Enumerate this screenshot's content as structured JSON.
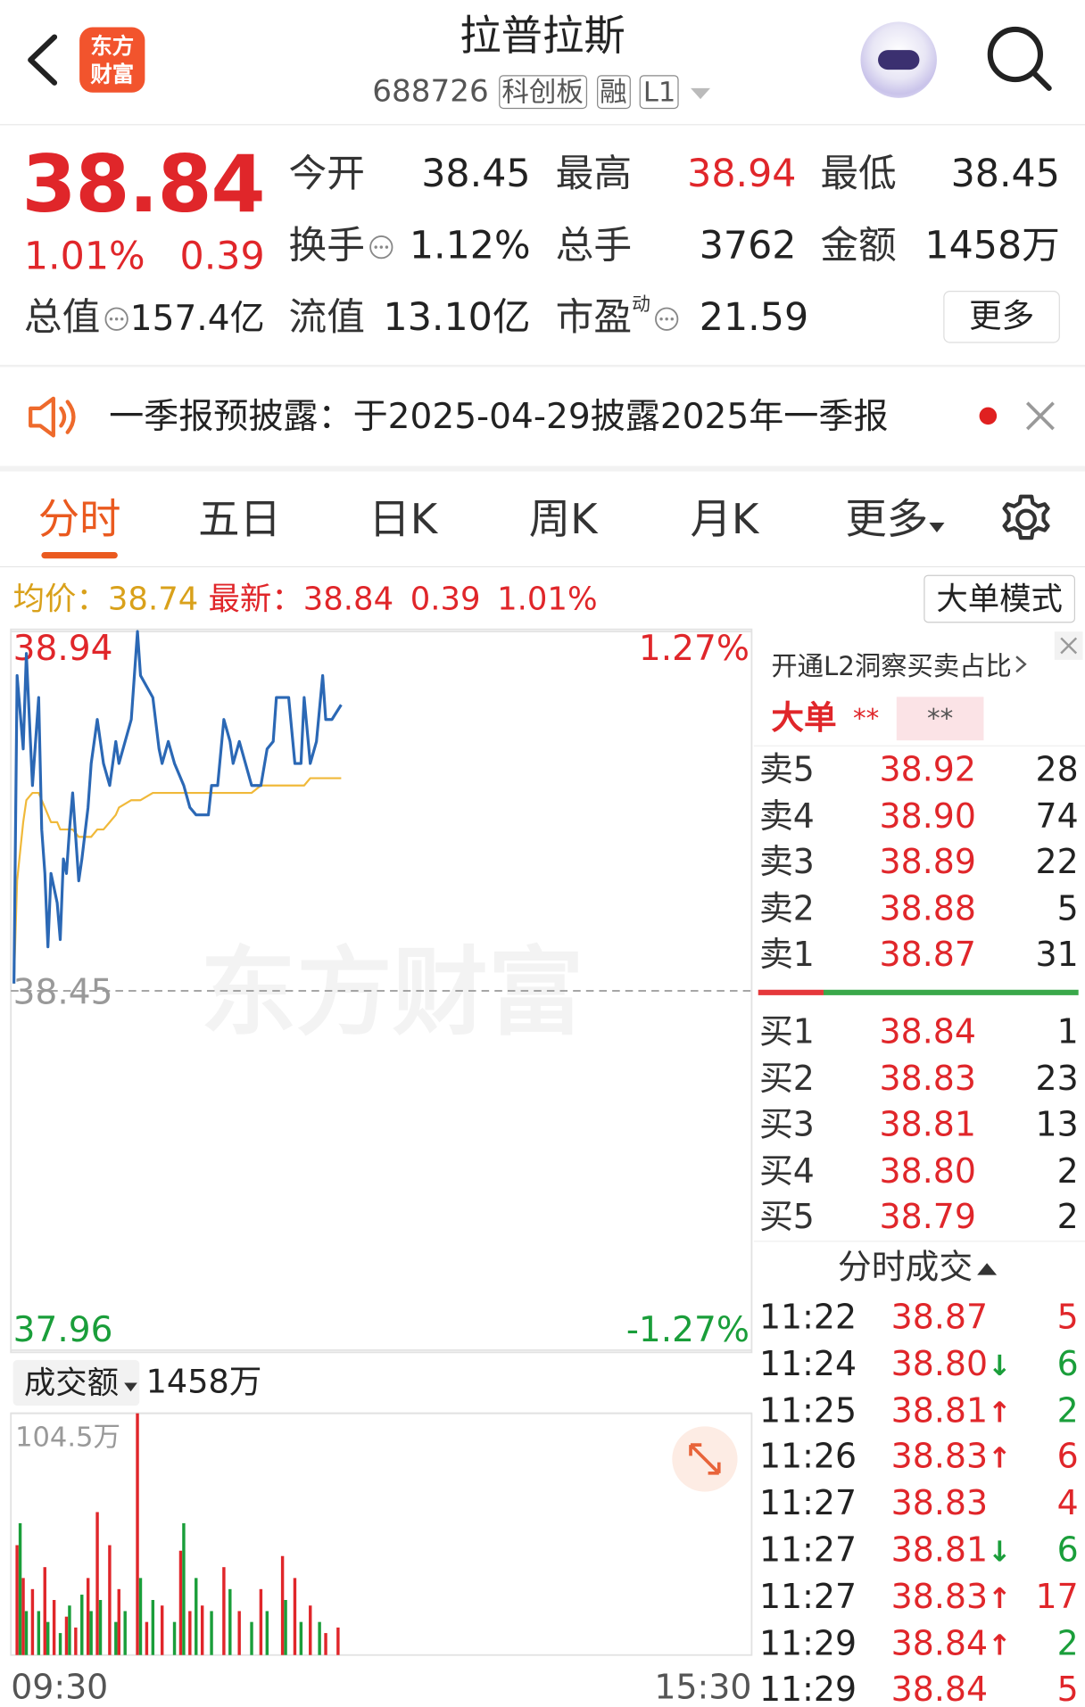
{
  "header": {
    "title": "拉普拉斯",
    "code": "688726",
    "tags": [
      "科创板",
      "融",
      "L1"
    ],
    "logo": [
      "东方",
      "财富"
    ]
  },
  "quote": {
    "price": "38.84",
    "change_pct": "1.01%",
    "change": "0.39",
    "stats": [
      {
        "label": "今开",
        "value": "38.45"
      },
      {
        "label": "最高",
        "value": "38.94"
      },
      {
        "label": "最低",
        "value": "38.45"
      },
      {
        "label": "换手",
        "value": "1.12%"
      },
      {
        "label": "总手",
        "value": "3762"
      },
      {
        "label": "金额",
        "value": "1458万"
      },
      {
        "label": "总值",
        "value": "157.4亿"
      },
      {
        "label": "流值",
        "value": "13.10亿"
      },
      {
        "label": "市盈",
        "value": "21.59",
        "note": "动"
      }
    ],
    "more": "更多"
  },
  "notice": "一季报预披露：于2025-04-29披露2025年一季报",
  "tabs": [
    "分时",
    "五日",
    "日K",
    "周K",
    "月K",
    "更多"
  ],
  "mode_button": "大单模式",
  "chart_data": [
    {
      "type": "line",
      "watermark": "东方财富",
      "avg": "38.74",
      "latest": "38.84",
      "latest_change": "0.39",
      "latest_pct": "1.01%",
      "x": [
        1,
        2,
        4,
        5,
        7,
        9,
        10,
        11,
        12,
        13,
        15,
        16,
        17,
        18,
        19,
        20,
        22,
        23,
        25,
        26,
        28,
        30,
        32,
        34,
        35,
        39,
        41,
        42,
        46,
        48,
        49,
        51,
        53,
        56,
        58,
        60,
        64,
        65,
        67,
        69,
        71,
        72,
        74,
        78,
        81,
        83,
        85,
        86,
        90,
        92,
        94,
        95,
        97,
        99,
        101,
        102,
        104,
        107
      ],
      "xlim": [
        0,
        240
      ],
      "ylim": [
        37.96,
        38.94
      ],
      "yticks": [
        37.96,
        38.45,
        38.94
      ],
      "y2lim": [
        -1.27,
        1.27
      ],
      "y2ticks": [
        {
          "value": -1.27,
          "label": "-1.27%"
        },
        {
          "value": 1.27,
          "label": "1.27%"
        }
      ],
      "series": [
        {
          "name": "均价：",
          "color": "#f0b93a",
          "values": [
            38.46,
            38.6,
            38.68,
            38.71,
            38.72,
            38.72,
            38.71,
            38.7,
            38.69,
            38.68,
            38.68,
            38.67,
            38.67,
            38.67,
            38.67,
            38.67,
            38.66,
            38.66,
            38.66,
            38.66,
            38.67,
            38.67,
            38.68,
            38.69,
            38.7,
            38.71,
            38.71,
            38.71,
            38.72,
            38.72,
            38.72,
            38.72,
            38.72,
            38.72,
            38.72,
            38.72,
            38.72,
            38.72,
            38.72,
            38.72,
            38.72,
            38.72,
            38.72,
            38.72,
            38.73,
            38.73,
            38.73,
            38.73,
            38.73,
            38.73,
            38.73,
            38.73,
            38.74,
            38.74,
            38.74,
            38.74,
            38.74,
            38.74
          ]
        },
        {
          "name": "最新：",
          "color": "#2b68b5",
          "values": [
            38.46,
            38.88,
            38.78,
            38.91,
            38.73,
            38.85,
            38.67,
            38.61,
            38.51,
            38.61,
            38.57,
            38.52,
            38.63,
            38.61,
            38.67,
            38.72,
            38.6,
            38.63,
            38.7,
            38.76,
            38.82,
            38.76,
            38.73,
            38.79,
            38.76,
            38.82,
            38.94,
            38.88,
            38.85,
            38.78,
            38.76,
            38.79,
            38.76,
            38.73,
            38.7,
            38.69,
            38.69,
            38.73,
            38.73,
            38.82,
            38.79,
            38.76,
            38.79,
            38.73,
            38.73,
            38.78,
            38.79,
            38.85,
            38.85,
            38.76,
            38.76,
            38.85,
            38.76,
            38.79,
            38.88,
            38.82,
            38.82,
            38.84
          ]
        }
      ]
    },
    {
      "type": "bar",
      "title": "成交额",
      "total": "1458万",
      "x": [
        2,
        3,
        4,
        5,
        7,
        9,
        11,
        12,
        14,
        16,
        18,
        19,
        21,
        23,
        25,
        26,
        28,
        29,
        32,
        34,
        35,
        37,
        41,
        42,
        44,
        46,
        49,
        53,
        55,
        56,
        58,
        60,
        62,
        65,
        69,
        71,
        74,
        78,
        81,
        83,
        88,
        89,
        92,
        94,
        97,
        100,
        102,
        106
      ],
      "values": [
        47.5,
        57.0,
        33.3,
        19.0,
        28.5,
        19.0,
        38.0,
        14.3,
        23.8,
        9.5,
        16.6,
        21.4,
        11.9,
        26.1,
        33.3,
        19.0,
        61.8,
        23.8,
        47.5,
        14.3,
        28.5,
        19.0,
        104.5,
        33.3,
        14.3,
        23.8,
        21.4,
        14.3,
        45.1,
        57.0,
        19.0,
        33.3,
        21.4,
        19.0,
        38.0,
        28.5,
        19.0,
        14.3,
        28.5,
        19.0,
        42.8,
        23.8,
        33.3,
        14.3,
        21.4,
        14.3,
        9.5,
        11.9
      ],
      "colors": [
        "#e0262a",
        "#1a9e3a",
        "#e0262a",
        "#1a9e3a",
        "#e0262a",
        "#1a9e3a",
        "#e0262a",
        "#1a9e3a",
        "#e0262a",
        "#1a9e3a",
        "#e0262a",
        "#1a9e3a",
        "#e0262a",
        "#1a9e3a",
        "#e0262a",
        "#1a9e3a",
        "#e0262a",
        "#1a9e3a",
        "#e0262a",
        "#1a9e3a",
        "#e0262a",
        "#1a9e3a",
        "#e0262a",
        "#1a9e3a",
        "#e0262a",
        "#1a9e3a",
        "#e0262a",
        "#1a9e3a",
        "#e0262a",
        "#1a9e3a",
        "#e0262a",
        "#1a9e3a",
        "#e0262a",
        "#1a9e3a",
        "#e0262a",
        "#1a9e3a",
        "#e0262a",
        "#1a9e3a",
        "#e0262a",
        "#1a9e3a",
        "#e0262a",
        "#1a9e3a",
        "#e0262a",
        "#1a9e3a",
        "#e0262a",
        "#1a9e3a",
        "#e0262a",
        "#e0262a"
      ],
      "xlim": [
        0,
        240
      ],
      "xticks": [
        {
          "value": 0,
          "label": "09:30"
        },
        {
          "value": 240,
          "label": "15:30"
        }
      ],
      "ylim": [
        0,
        104.5
      ],
      "yticks": [
        {
          "value": 104.5,
          "label": "104.5万"
        }
      ]
    }
  ],
  "order_book": {
    "promo": "开通L2洞察买卖占比",
    "big_order": "大单",
    "big_buy": "**",
    "big_sell": "**",
    "rows": [
      [
        "卖5",
        "38.92",
        "28"
      ],
      [
        "卖4",
        "38.90",
        "74"
      ],
      [
        "卖3",
        "38.89",
        "22"
      ],
      [
        "卖2",
        "38.88",
        "5"
      ],
      [
        "卖1",
        "38.87",
        "31"
      ],
      [
        "买1",
        "38.84",
        "1"
      ],
      [
        "买2",
        "38.83",
        "23"
      ],
      [
        "买3",
        "38.81",
        "13"
      ],
      [
        "买4",
        "38.80",
        "2"
      ],
      [
        "买5",
        "38.79",
        "2"
      ]
    ]
  },
  "trades": {
    "title": "分时成交",
    "rows": [
      {
        "time": "11:22",
        "price": "38.87",
        "qty": "5",
        "color": "red"
      },
      {
        "time": "11:24",
        "price": "38.80",
        "arrow": "↓",
        "qty": "6",
        "color": "green"
      },
      {
        "time": "11:25",
        "price": "38.81",
        "arrow": "↑",
        "qty": "2",
        "color": "green"
      },
      {
        "time": "11:26",
        "price": "38.83",
        "arrow": "↑",
        "qty": "6",
        "color": "red"
      },
      {
        "time": "11:27",
        "price": "38.83",
        "qty": "4",
        "color": "red"
      },
      {
        "time": "11:27",
        "price": "38.81",
        "arrow": "↓",
        "qty": "6",
        "color": "green"
      },
      {
        "time": "11:27",
        "price": "38.83",
        "arrow": "↑",
        "qty": "17",
        "color": "red"
      },
      {
        "time": "11:29",
        "price": "38.84",
        "arrow": "↑",
        "qty": "2",
        "color": "green"
      },
      {
        "time": "11:29",
        "price": "38.84",
        "qty": "5",
        "color": "red"
      }
    ]
  }
}
